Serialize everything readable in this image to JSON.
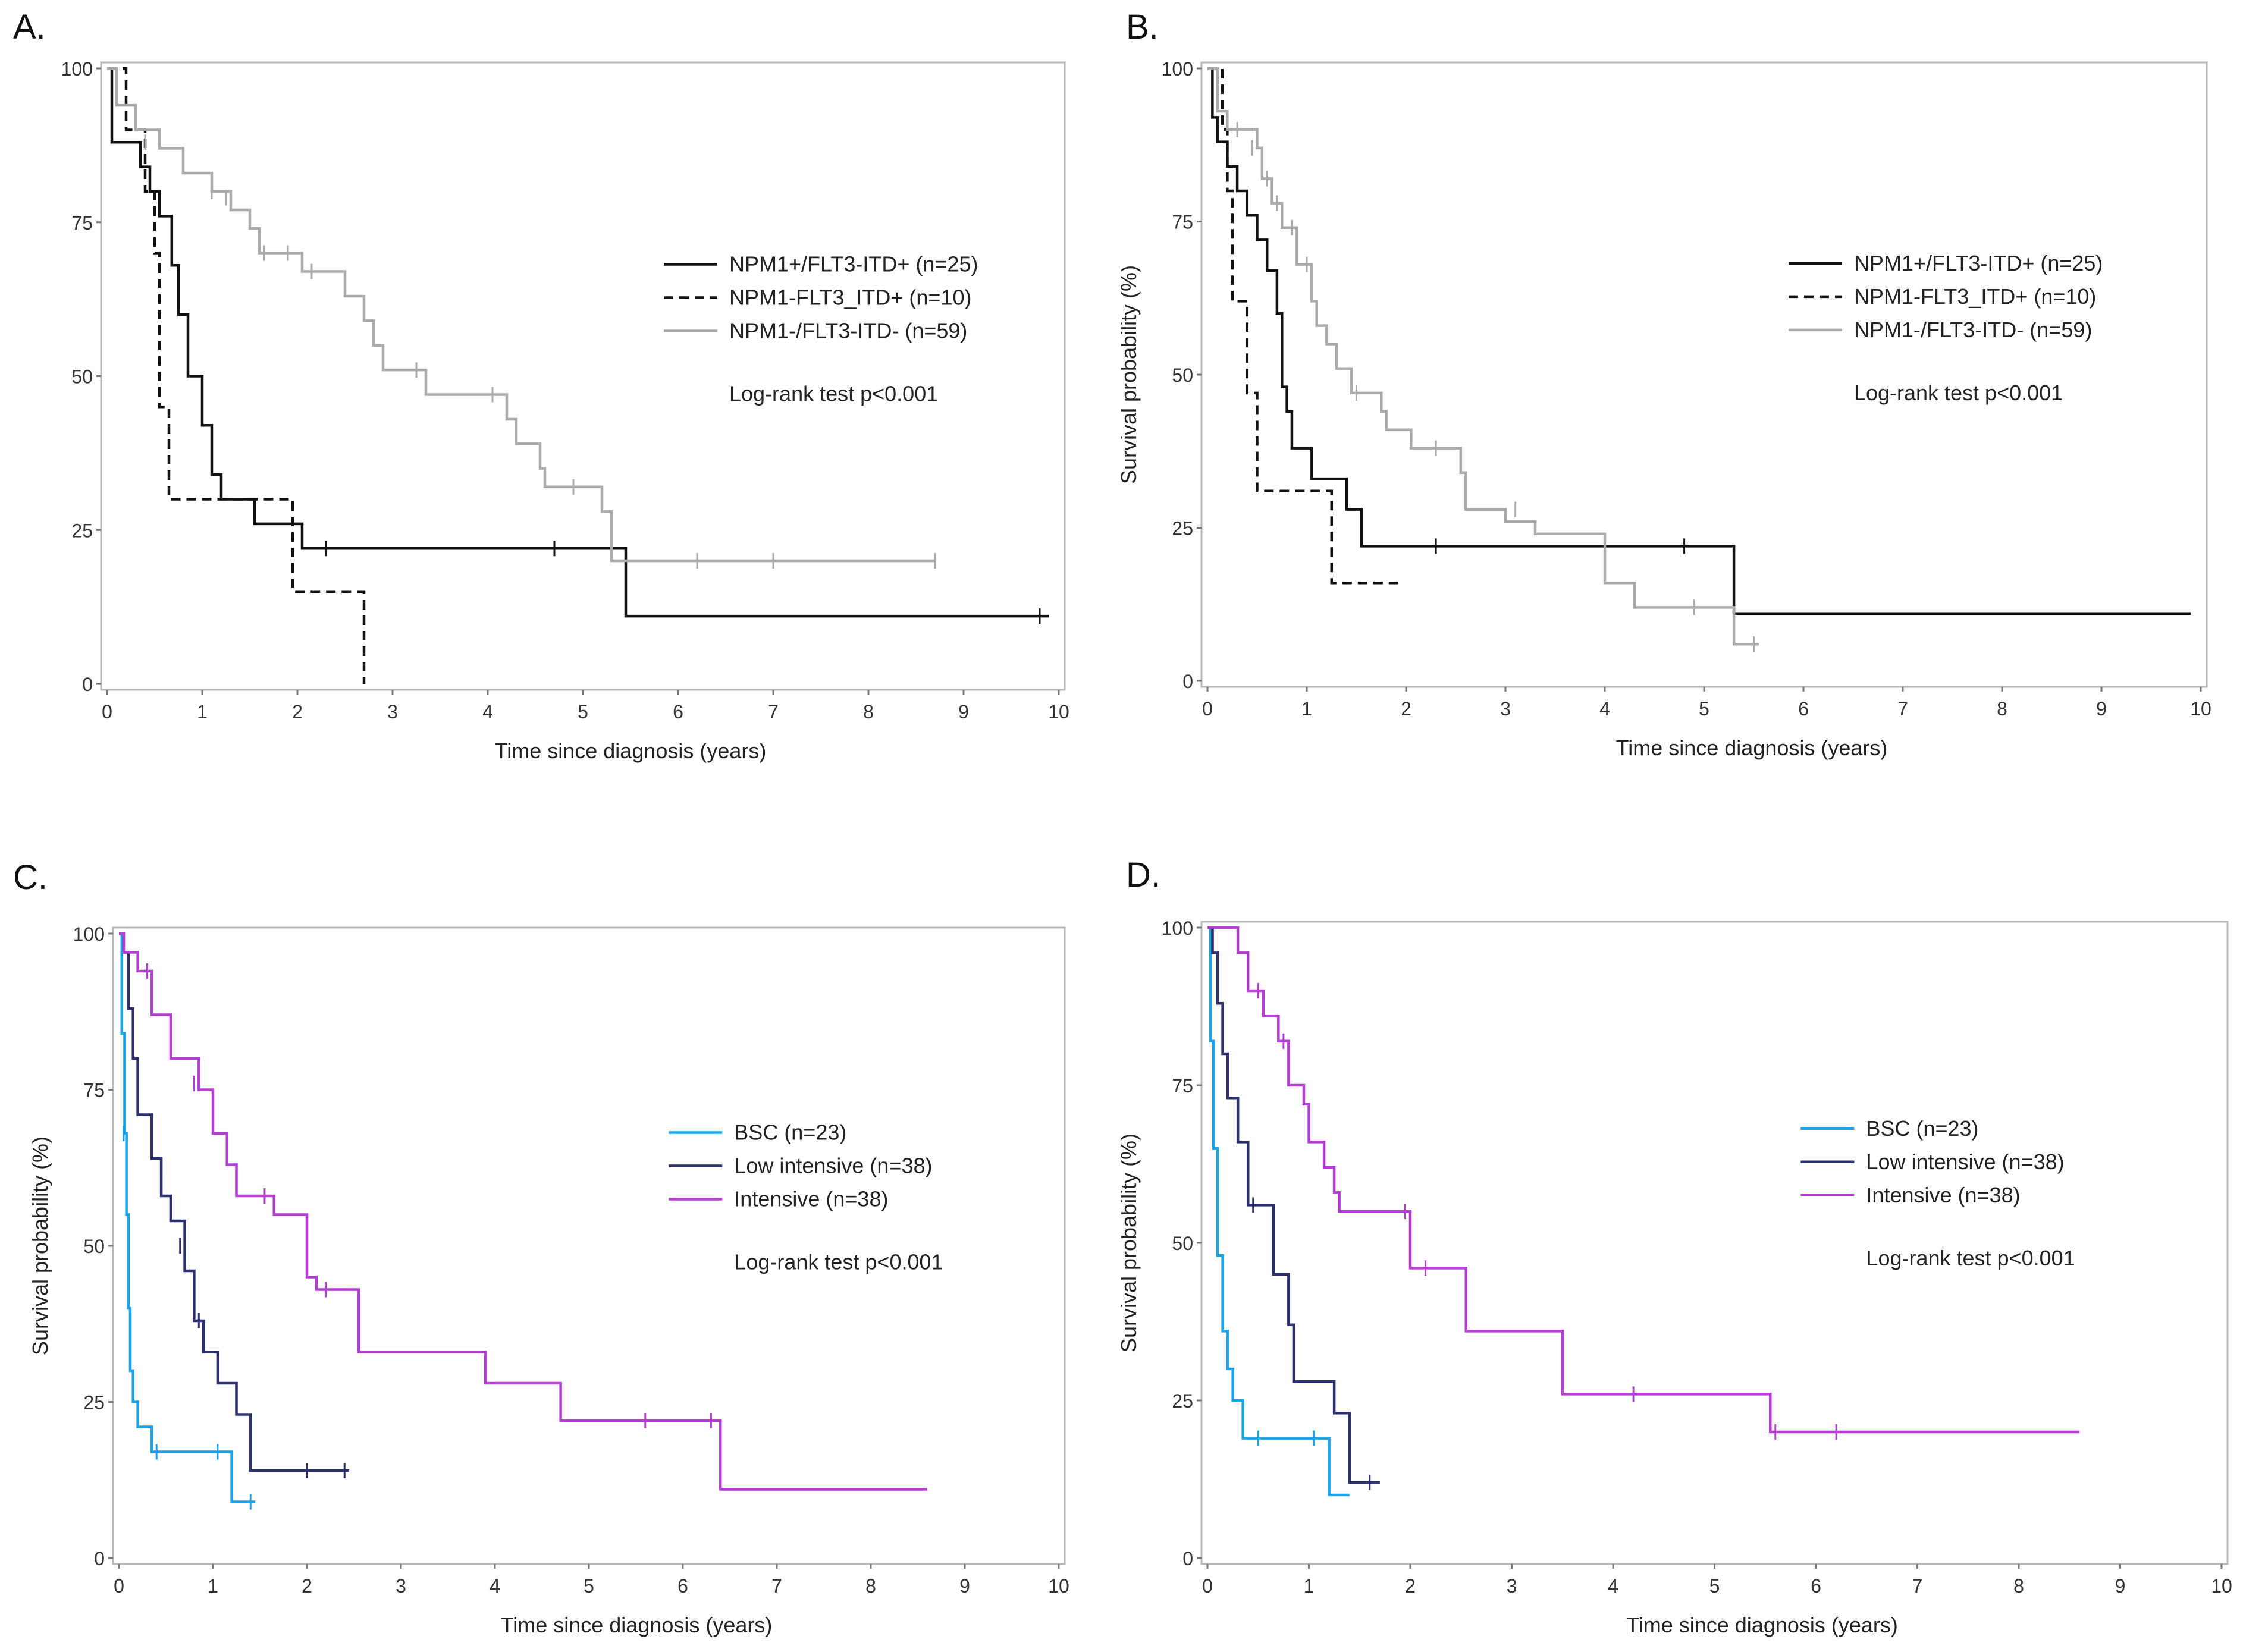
{
  "chart_data": [
    {
      "type": "line",
      "panel_label": "A.",
      "title": "",
      "xlabel": "Time since diagnosis (years)",
      "ylabel": "",
      "xlim": [
        0,
        10
      ],
      "ylim": [
        0,
        100
      ],
      "xticks": [
        0,
        1,
        2,
        3,
        4,
        5,
        6,
        7,
        8,
        9,
        10
      ],
      "yticks": [
        0,
        25,
        50,
        75,
        100
      ],
      "annotation": "Log-rank test p<0.001",
      "legend": "right",
      "series": [
        {
          "name": "NPM1+/FLT3-ITD+ (n=25)",
          "color": "#111111",
          "dash": "solid",
          "points": [
            [
              0,
              100
            ],
            [
              0.05,
              88
            ],
            [
              0.35,
              84
            ],
            [
              0.45,
              80
            ],
            [
              0.55,
              76
            ],
            [
              0.68,
              68
            ],
            [
              0.75,
              60
            ],
            [
              0.85,
              50
            ],
            [
              1.0,
              42
            ],
            [
              1.1,
              34
            ],
            [
              1.2,
              30
            ],
            [
              1.55,
              26
            ],
            [
              2.05,
              22
            ],
            [
              5.45,
              11
            ],
            [
              9.9,
              11
            ]
          ],
          "censor": [
            [
              2.3,
              22
            ],
            [
              4.7,
              22
            ],
            [
              9.8,
              11
            ]
          ]
        },
        {
          "name": "NPM1-FLT3_ITD+ (n=10)",
          "color": "#111111",
          "dash": "dashed",
          "points": [
            [
              0,
              100
            ],
            [
              0.2,
              90
            ],
            [
              0.4,
              80
            ],
            [
              0.5,
              70
            ],
            [
              0.55,
              45
            ],
            [
              0.65,
              30
            ],
            [
              1.95,
              15
            ],
            [
              2.7,
              0
            ]
          ],
          "censor": []
        },
        {
          "name": "NPM1-/FLT3-ITD- (n=59)",
          "color": "#aaaaaa",
          "dash": "solid",
          "points": [
            [
              0,
              100
            ],
            [
              0.1,
              94
            ],
            [
              0.3,
              90
            ],
            [
              0.55,
              87
            ],
            [
              0.8,
              83
            ],
            [
              1.1,
              80
            ],
            [
              1.3,
              77
            ],
            [
              1.5,
              74
            ],
            [
              1.6,
              70
            ],
            [
              2.05,
              67
            ],
            [
              2.5,
              63
            ],
            [
              2.7,
              59
            ],
            [
              2.8,
              55
            ],
            [
              2.9,
              51
            ],
            [
              3.35,
              47
            ],
            [
              4.2,
              43
            ],
            [
              4.3,
              39
            ],
            [
              4.55,
              35
            ],
            [
              4.6,
              32
            ],
            [
              5.2,
              28
            ],
            [
              5.3,
              20
            ],
            [
              8.7,
              20
            ]
          ],
          "censor": [
            [
              0.4,
              88
            ],
            [
              1.1,
              80
            ],
            [
              1.25,
              79
            ],
            [
              1.65,
              70
            ],
            [
              1.9,
              70
            ],
            [
              2.15,
              67
            ],
            [
              3.25,
              51
            ],
            [
              4.05,
              47
            ],
            [
              4.9,
              32
            ],
            [
              6.2,
              20
            ],
            [
              7.0,
              20
            ],
            [
              8.7,
              20
            ]
          ]
        }
      ]
    },
    {
      "type": "line",
      "panel_label": "B.",
      "title": "",
      "xlabel": "Time since diagnosis (years)",
      "ylabel": "Survival probability (%)",
      "xlim": [
        0,
        10
      ],
      "ylim": [
        0,
        100
      ],
      "xticks": [
        0,
        1,
        2,
        3,
        4,
        5,
        6,
        7,
        8,
        9,
        10
      ],
      "yticks": [
        0,
        25,
        50,
        75,
        100
      ],
      "annotation": "Log-rank test p<0.001",
      "legend": "right",
      "series": [
        {
          "name": "NPM1+/FLT3-ITD+ (n=25)",
          "color": "#111111",
          "dash": "solid",
          "points": [
            [
              0,
              100
            ],
            [
              0.05,
              92
            ],
            [
              0.1,
              88
            ],
            [
              0.2,
              84
            ],
            [
              0.3,
              80
            ],
            [
              0.4,
              76
            ],
            [
              0.5,
              72
            ],
            [
              0.6,
              67
            ],
            [
              0.7,
              60
            ],
            [
              0.75,
              48
            ],
            [
              0.8,
              44
            ],
            [
              0.85,
              38
            ],
            [
              1.05,
              33
            ],
            [
              1.4,
              28
            ],
            [
              1.55,
              22
            ],
            [
              5.3,
              11
            ],
            [
              9.9,
              11
            ]
          ],
          "censor": [
            [
              2.3,
              22
            ],
            [
              4.8,
              22
            ]
          ]
        },
        {
          "name": "NPM1-FLT3_ITD+ (n=10)",
          "color": "#111111",
          "dash": "dashed",
          "points": [
            [
              0,
              100
            ],
            [
              0.15,
              90
            ],
            [
              0.2,
              80
            ],
            [
              0.25,
              62
            ],
            [
              0.4,
              47
            ],
            [
              0.5,
              31
            ],
            [
              1.25,
              16
            ],
            [
              1.95,
              16
            ]
          ],
          "censor": []
        },
        {
          "name": "NPM1-/FLT3-ITD- (n=59)",
          "color": "#aaaaaa",
          "dash": "solid",
          "points": [
            [
              0,
              100
            ],
            [
              0.1,
              93
            ],
            [
              0.2,
              90
            ],
            [
              0.5,
              87
            ],
            [
              0.55,
              82
            ],
            [
              0.65,
              78
            ],
            [
              0.75,
              74
            ],
            [
              0.9,
              68
            ],
            [
              1.05,
              62
            ],
            [
              1.1,
              58
            ],
            [
              1.2,
              55
            ],
            [
              1.3,
              51
            ],
            [
              1.45,
              47
            ],
            [
              1.75,
              44
            ],
            [
              1.8,
              41
            ],
            [
              2.05,
              38
            ],
            [
              2.55,
              34
            ],
            [
              2.6,
              28
            ],
            [
              3.0,
              26
            ],
            [
              3.3,
              24
            ],
            [
              4.0,
              16
            ],
            [
              4.3,
              12
            ],
            [
              5.3,
              6
            ],
            [
              5.55,
              6
            ]
          ],
          "censor": [
            [
              0.3,
              90
            ],
            [
              0.45,
              87
            ],
            [
              0.6,
              82
            ],
            [
              0.7,
              78
            ],
            [
              0.85,
              74
            ],
            [
              1.0,
              68
            ],
            [
              1.5,
              47
            ],
            [
              2.3,
              38
            ],
            [
              3.1,
              28
            ],
            [
              4.9,
              12
            ],
            [
              5.5,
              6
            ]
          ]
        }
      ]
    },
    {
      "type": "line",
      "panel_label": "C.",
      "title": "",
      "xlabel": "Time since diagnosis (years)",
      "ylabel": "Survival probability (%)",
      "xlim": [
        0,
        10
      ],
      "ylim": [
        0,
        100
      ],
      "xticks": [
        0,
        1,
        2,
        3,
        4,
        5,
        6,
        7,
        8,
        9,
        10
      ],
      "yticks": [
        0,
        25,
        50,
        75,
        100
      ],
      "annotation": "Log-rank test p<0.001",
      "legend": "right",
      "series": [
        {
          "name": "BSC (n=23)",
          "color": "#1aa3e6",
          "dash": "solid",
          "points": [
            [
              0,
              100
            ],
            [
              0.03,
              84
            ],
            [
              0.06,
              68
            ],
            [
              0.08,
              55
            ],
            [
              0.1,
              40
            ],
            [
              0.12,
              30
            ],
            [
              0.15,
              25
            ],
            [
              0.2,
              21
            ],
            [
              0.35,
              17
            ],
            [
              1.2,
              9
            ],
            [
              1.45,
              9
            ]
          ],
          "censor": [
            [
              0.05,
              68
            ],
            [
              0.4,
              17
            ],
            [
              1.05,
              17
            ],
            [
              1.4,
              9
            ]
          ]
        },
        {
          "name": "Low intensive (n=38)",
          "color": "#2b2f6b",
          "dash": "solid",
          "points": [
            [
              0,
              100
            ],
            [
              0.05,
              97
            ],
            [
              0.1,
              88
            ],
            [
              0.15,
              80
            ],
            [
              0.2,
              71
            ],
            [
              0.35,
              64
            ],
            [
              0.45,
              58
            ],
            [
              0.55,
              54
            ],
            [
              0.7,
              46
            ],
            [
              0.8,
              38
            ],
            [
              0.9,
              33
            ],
            [
              1.05,
              28
            ],
            [
              1.25,
              23
            ],
            [
              1.4,
              14
            ],
            [
              2.45,
              14
            ]
          ],
          "censor": [
            [
              0.45,
              60
            ],
            [
              0.65,
              50
            ],
            [
              0.85,
              38
            ],
            [
              2.0,
              14
            ],
            [
              2.4,
              14
            ]
          ]
        },
        {
          "name": "Intensive (n=38)",
          "color": "#b33fd1",
          "dash": "solid",
          "points": [
            [
              0,
              100
            ],
            [
              0.05,
              97
            ],
            [
              0.2,
              94
            ],
            [
              0.35,
              87
            ],
            [
              0.55,
              80
            ],
            [
              0.85,
              75
            ],
            [
              1.0,
              68
            ],
            [
              1.15,
              63
            ],
            [
              1.25,
              58
            ],
            [
              1.65,
              55
            ],
            [
              2.0,
              45
            ],
            [
              2.1,
              43
            ],
            [
              2.55,
              33
            ],
            [
              3.9,
              28
            ],
            [
              4.7,
              22
            ],
            [
              6.4,
              11
            ],
            [
              8.6,
              11
            ]
          ],
          "censor": [
            [
              0.3,
              94
            ],
            [
              0.8,
              76
            ],
            [
              1.55,
              58
            ],
            [
              2.2,
              43
            ],
            [
              5.6,
              22
            ],
            [
              6.3,
              22
            ]
          ]
        }
      ]
    },
    {
      "type": "line",
      "panel_label": "D.",
      "title": "",
      "xlabel": "Time since diagnosis (years)",
      "ylabel": "Survival probability (%)",
      "xlim": [
        0,
        10
      ],
      "ylim": [
        0,
        100
      ],
      "xticks": [
        0,
        1,
        2,
        3,
        4,
        5,
        6,
        7,
        8,
        9,
        10
      ],
      "yticks": [
        0,
        25,
        50,
        75,
        100
      ],
      "annotation": "Log-rank test p<0.001",
      "legend": "right",
      "series": [
        {
          "name": "BSC (n=23)",
          "color": "#1aa3e6",
          "dash": "solid",
          "points": [
            [
              0,
              100
            ],
            [
              0.03,
              82
            ],
            [
              0.06,
              65
            ],
            [
              0.1,
              48
            ],
            [
              0.15,
              36
            ],
            [
              0.2,
              30
            ],
            [
              0.25,
              25
            ],
            [
              0.35,
              19
            ],
            [
              1.2,
              10
            ],
            [
              1.4,
              10
            ]
          ],
          "censor": [
            [
              0.5,
              19
            ],
            [
              1.05,
              19
            ]
          ]
        },
        {
          "name": "Low intensive (n=38)",
          "color": "#2b2f6b",
          "dash": "solid",
          "points": [
            [
              0,
              100
            ],
            [
              0.05,
              96
            ],
            [
              0.1,
              88
            ],
            [
              0.15,
              80
            ],
            [
              0.2,
              73
            ],
            [
              0.3,
              66
            ],
            [
              0.4,
              56
            ],
            [
              0.65,
              45
            ],
            [
              0.8,
              37
            ],
            [
              0.85,
              28
            ],
            [
              1.25,
              23
            ],
            [
              1.4,
              12
            ],
            [
              1.7,
              12
            ]
          ],
          "censor": [
            [
              0.45,
              56
            ],
            [
              1.6,
              12
            ]
          ]
        },
        {
          "name": "Intensive (n=38)",
          "color": "#b33fd1",
          "dash": "solid",
          "points": [
            [
              0,
              100
            ],
            [
              0.3,
              96
            ],
            [
              0.4,
              90
            ],
            [
              0.55,
              86
            ],
            [
              0.7,
              82
            ],
            [
              0.8,
              75
            ],
            [
              0.95,
              72
            ],
            [
              1.0,
              66
            ],
            [
              1.15,
              62
            ],
            [
              1.25,
              58
            ],
            [
              1.3,
              55
            ],
            [
              2.0,
              46
            ],
            [
              2.55,
              36
            ],
            [
              3.5,
              26
            ],
            [
              5.55,
              20
            ],
            [
              8.6,
              20
            ]
          ],
          "censor": [
            [
              0.5,
              90
            ],
            [
              0.75,
              82
            ],
            [
              1.95,
              55
            ],
            [
              2.15,
              46
            ],
            [
              4.2,
              26
            ],
            [
              5.6,
              20
            ],
            [
              6.2,
              20
            ]
          ]
        }
      ]
    }
  ]
}
